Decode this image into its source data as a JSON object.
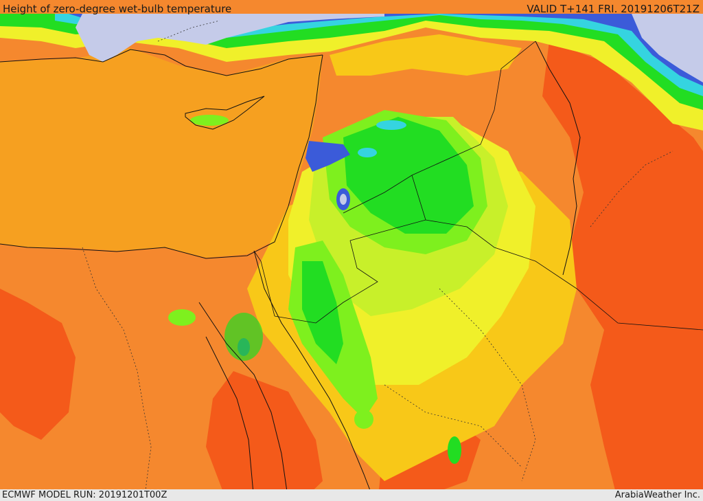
{
  "header": {
    "title": "Height of zero-degree wet-bulb temperature",
    "valid": "VALID T+141 FRI. 20191206T21Z"
  },
  "footer": {
    "model_run": "ECMWF MODEL RUN: 20191201T00Z",
    "credit": "ArabiaWeather Inc."
  },
  "palette": {
    "sea_cold": "#c5cbe9",
    "blue": "#3b5bd9",
    "cyan": "#35d4e0",
    "aqua": "#2fd0a0",
    "green": "#22dd22",
    "light_green": "#7ef01e",
    "yellow_green": "#c8f02a",
    "yellow": "#f0f02a",
    "amber": "#f8c818",
    "orange": "#f6a020",
    "dark_orange": "#f5882e",
    "red_orange": "#f45a1a",
    "header_bg": "#e9e9e9"
  }
}
